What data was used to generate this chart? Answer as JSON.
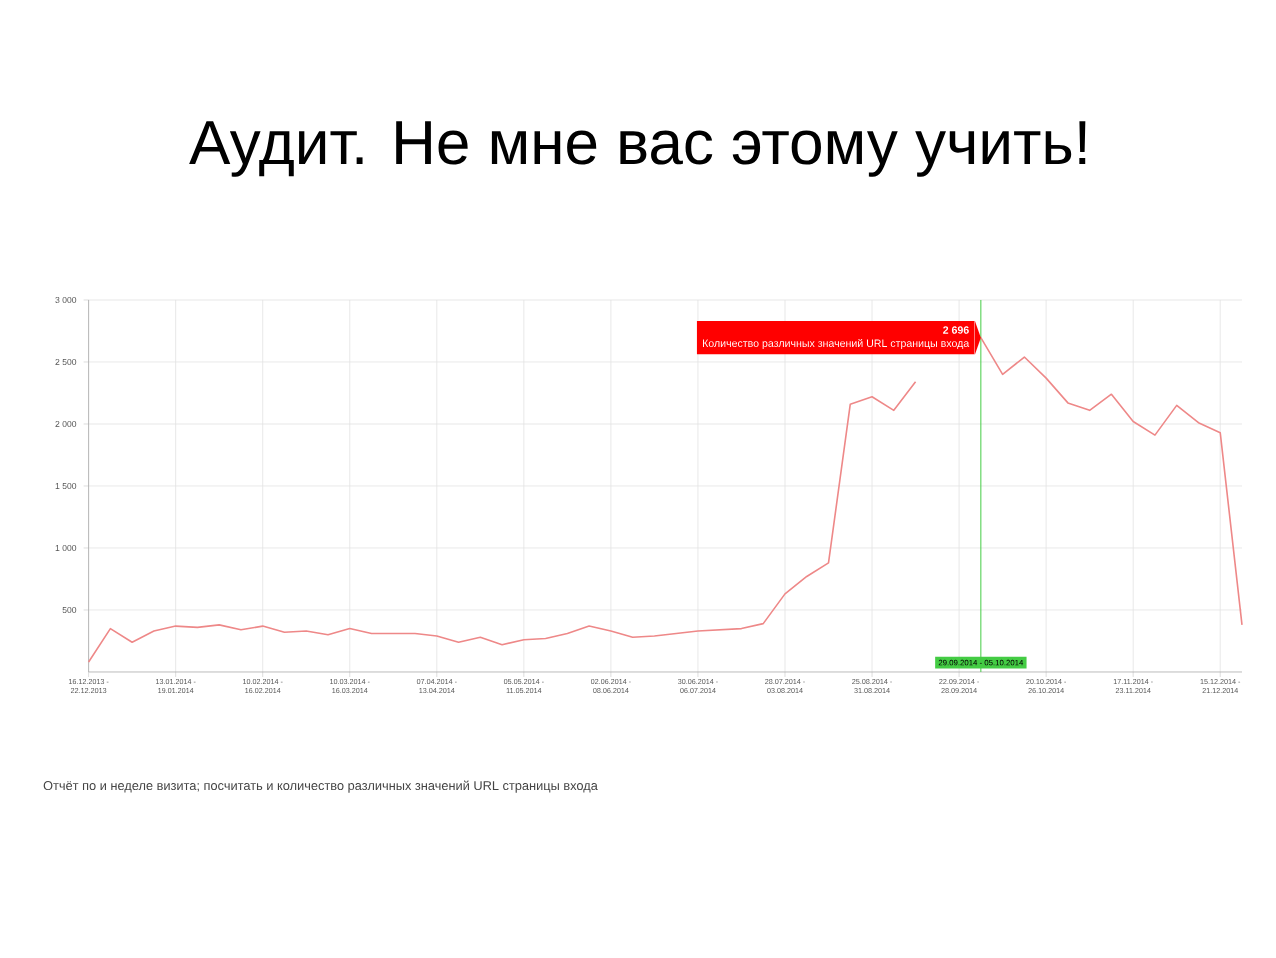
{
  "chart_data": {
    "type": "line",
    "title": "Аудит. Не мне вас этому учить!",
    "x": [
      "2013-12-16",
      "2013-12-23",
      "2013-12-30",
      "2014-01-06",
      "2014-01-13",
      "2014-01-20",
      "2014-01-27",
      "2014-02-03",
      "2014-02-10",
      "2014-02-17",
      "2014-02-24",
      "2014-03-03",
      "2014-03-10",
      "2014-03-17",
      "2014-03-24",
      "2014-03-31",
      "2014-04-07",
      "2014-04-14",
      "2014-04-21",
      "2014-04-28",
      "2014-05-05",
      "2014-05-12",
      "2014-05-19",
      "2014-05-26",
      "2014-06-02",
      "2014-06-09",
      "2014-06-16",
      "2014-06-23",
      "2014-06-30",
      "2014-07-07",
      "2014-07-14",
      "2014-07-21",
      "2014-07-28",
      "2014-08-04",
      "2014-08-11",
      "2014-08-18",
      "2014-08-25",
      "2014-09-01",
      "2014-09-08",
      "2014-09-15",
      "2014-09-22",
      "2014-09-29",
      "2014-10-06",
      "2014-10-13",
      "2014-10-20",
      "2014-10-27",
      "2014-11-03",
      "2014-11-10",
      "2014-11-17",
      "2014-11-24",
      "2014-12-01",
      "2014-12-08",
      "2014-12-15",
      "2014-12-22"
    ],
    "series": [
      {
        "name": "Количество различных значений URL страницы входа",
        "color": "#ee8888",
        "values": [
          80,
          350,
          240,
          330,
          370,
          360,
          380,
          340,
          370,
          320,
          330,
          300,
          350,
          310,
          310,
          310,
          290,
          240,
          280,
          220,
          260,
          270,
          310,
          370,
          330,
          280,
          290,
          310,
          330,
          340,
          350,
          390,
          630,
          770,
          880,
          2160,
          2220,
          2110,
          2340,
          null,
          null,
          2696,
          2400,
          2540,
          2370,
          2170,
          2110,
          2240,
          2020,
          1910,
          2150,
          2010,
          1930,
          380
        ]
      }
    ],
    "xlim": [
      "2013-12-16",
      "2014-12-22"
    ],
    "xticks": [
      {
        "value": "2013-12-16",
        "label": "16.12.2013 - 22.12.2013"
      },
      {
        "value": "2014-01-13",
        "label": "13.01.2014 - 19.01.2014"
      },
      {
        "value": "2014-02-10",
        "label": "10.02.2014 - 16.02.2014"
      },
      {
        "value": "2014-03-10",
        "label": "10.03.2014 - 16.03.2014"
      },
      {
        "value": "2014-04-07",
        "label": "07.04.2014 - 13.04.2014"
      },
      {
        "value": "2014-05-05",
        "label": "05.05.2014 - 11.05.2014"
      },
      {
        "value": "2014-06-02",
        "label": "02.06.2014 - 08.06.2014"
      },
      {
        "value": "2014-06-30",
        "label": "30.06.2014 - 06.07.2014"
      },
      {
        "value": "2014-07-28",
        "label": "28.07.2014 - 03.08.2014"
      },
      {
        "value": "2014-08-25",
        "label": "25.08.2014 - 31.08.2014"
      },
      {
        "value": "2014-09-22",
        "label": "22.09.2014 - 28.09.2014"
      },
      {
        "value": "2014-10-20",
        "label": "20.10.2014 - 26.10.2014"
      },
      {
        "value": "2014-11-17",
        "label": "17.11.2014 - 23.11.2014"
      },
      {
        "value": "2014-12-15",
        "label": "15.12.2014 - 21.12.2014"
      }
    ],
    "ylim": [
      0,
      3000
    ],
    "yticks": [
      500,
      {
        "value": 1000,
        "label": "1 000"
      },
      {
        "value": 1500,
        "label": "1 500"
      },
      {
        "value": 2000,
        "label": "2 000"
      },
      {
        "value": 2500,
        "label": "2 500"
      },
      {
        "value": 3000,
        "label": "3 000"
      }
    ],
    "grid": true,
    "ref_lines": [
      {
        "axis": "x",
        "value": "2014-09-29",
        "label": "29.09.2014 - 05.10.2014",
        "color": "#44cc44"
      }
    ],
    "annotations": [
      {
        "text": "2 696",
        "x": "2014-09-29",
        "y": 2696
      },
      "Отчёт по и неделе визита; посчитать и количество различных значений URL страницы входа"
    ]
  }
}
